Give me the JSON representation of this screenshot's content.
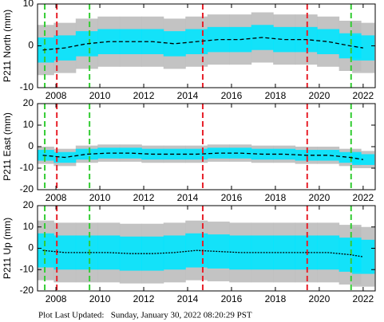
{
  "chart_data": [
    {
      "type": "line",
      "ylabel": "P211 North (mm)",
      "x": [
        2007.4,
        2008.4,
        2009.4,
        2010.4,
        2011.4,
        2012.4,
        2013.4,
        2014.4,
        2015.4,
        2016.4,
        2017.4,
        2018.4,
        2019.4,
        2020.4,
        2021.4,
        2022.0
      ],
      "xlim": [
        2007.16,
        2022.55
      ],
      "xticks": [
        2008,
        2010,
        2012,
        2014,
        2016,
        2018,
        2020,
        2022
      ],
      "ylim": [
        -10,
        10
      ],
      "yticks": [
        -10,
        0,
        10
      ],
      "bands": [
        {
          "color": "#bdbdbd",
          "low": [
            -7,
            -6.5,
            -5.5,
            -5,
            -5,
            -5,
            -5.5,
            -5,
            -4.5,
            -4.5,
            -4,
            -4.5,
            -4.5,
            -5,
            -6,
            -6.5
          ],
          "high": [
            5,
            5.5,
            6.5,
            7,
            7,
            7,
            6.5,
            7,
            7.5,
            7.5,
            8,
            7.5,
            7.5,
            7,
            6,
            5.5
          ]
        },
        {
          "color": "#00e5ff",
          "low": [
            -4,
            -3.5,
            -2.5,
            -2,
            -2,
            -2,
            -2.5,
            -2,
            -1.5,
            -1.5,
            -1,
            -1.5,
            -1.5,
            -2,
            -3,
            -3.5
          ],
          "high": [
            2,
            2.5,
            3.5,
            4,
            4,
            4,
            3.5,
            4,
            4.5,
            4.5,
            5,
            4.5,
            4.5,
            4,
            3,
            2.5
          ]
        }
      ],
      "series": [
        {
          "color": "#000000",
          "dashed": true,
          "values": [
            -1,
            -0.5,
            0.5,
            1,
            1,
            1,
            0.5,
            1,
            1.5,
            1.5,
            2,
            1.5,
            1.5,
            1,
            0,
            -0.5
          ]
        }
      ],
      "vlines": [
        {
          "x": 2007.49,
          "color": "#33cc33"
        },
        {
          "x": 2008.04,
          "color": "#e8202a"
        },
        {
          "x": 2009.53,
          "color": "#33cc33"
        },
        {
          "x": 2014.69,
          "color": "#e8202a"
        },
        {
          "x": 2019.45,
          "color": "#e8202a"
        },
        {
          "x": 2021.45,
          "color": "#33cc33"
        }
      ]
    },
    {
      "type": "line",
      "ylabel": "P211 East (mm)",
      "x": [
        2007.4,
        2008.4,
        2009.4,
        2010.4,
        2011.4,
        2012.4,
        2013.4,
        2014.4,
        2015.4,
        2016.4,
        2017.4,
        2018.4,
        2019.4,
        2020.4,
        2021.4,
        2022.0
      ],
      "xlim": [
        2007.16,
        2022.55
      ],
      "xticks": [
        2008,
        2010,
        2012,
        2014,
        2016,
        2018,
        2020,
        2022
      ],
      "ylim": [
        -20,
        20
      ],
      "yticks": [
        -20,
        -10,
        0,
        10,
        20
      ],
      "bands": [
        {
          "color": "#bdbdbd",
          "low": [
            -8,
            -9,
            -7.5,
            -7,
            -7,
            -7.5,
            -7.5,
            -7.5,
            -7,
            -7,
            -7.5,
            -7.5,
            -8,
            -8,
            -9,
            -10
          ],
          "high": [
            0,
            -1,
            0.5,
            1,
            1,
            0.5,
            0.5,
            0.5,
            1,
            1,
            0.5,
            0.5,
            0,
            0,
            -1,
            -2
          ]
        },
        {
          "color": "#00e5ff",
          "low": [
            -6.5,
            -7.5,
            -6,
            -5.5,
            -5.5,
            -6,
            -6,
            -6,
            -5.5,
            -5.5,
            -6,
            -6,
            -6.5,
            -6.5,
            -7.5,
            -8.5
          ],
          "high": [
            -1.5,
            -2.5,
            -1,
            -0.5,
            -0.5,
            -1,
            -1,
            -1,
            -0.5,
            -0.5,
            -1,
            -1,
            -1.5,
            -1.5,
            -2.5,
            -3.5
          ]
        }
      ],
      "series": [
        {
          "color": "#000000",
          "dashed": true,
          "values": [
            -4,
            -5,
            -3.5,
            -3,
            -3,
            -3.5,
            -3.5,
            -3.5,
            -3,
            -3,
            -3.5,
            -3.5,
            -4,
            -4,
            -5,
            -6
          ]
        }
      ],
      "vlines": [
        {
          "x": 2007.49,
          "color": "#33cc33"
        },
        {
          "x": 2008.04,
          "color": "#e8202a"
        },
        {
          "x": 2009.53,
          "color": "#33cc33"
        },
        {
          "x": 2014.69,
          "color": "#e8202a"
        },
        {
          "x": 2019.45,
          "color": "#e8202a"
        },
        {
          "x": 2021.45,
          "color": "#33cc33"
        }
      ]
    },
    {
      "type": "line",
      "ylabel": "P211 Up (mm)",
      "x": [
        2007.4,
        2008.4,
        2009.4,
        2010.4,
        2011.4,
        2012.4,
        2013.4,
        2014.4,
        2015.4,
        2016.4,
        2017.4,
        2018.4,
        2019.4,
        2020.4,
        2021.4,
        2022.0
      ],
      "xlim": [
        2007.16,
        2022.55
      ],
      "xticks": [
        2008,
        2010,
        2012,
        2014,
        2016,
        2018,
        2020,
        2022
      ],
      "ylim": [
        -20,
        20
      ],
      "yticks": [
        -20,
        -10,
        0,
        10,
        20
      ],
      "bands": [
        {
          "color": "#bdbdbd",
          "low": [
            -15,
            -16,
            -16,
            -16,
            -16.5,
            -16.5,
            -16,
            -15,
            -15.5,
            -16,
            -16,
            -16,
            -16,
            -16,
            -17,
            -18
          ],
          "high": [
            13,
            12,
            12,
            12,
            11.5,
            11.5,
            12,
            13,
            12.5,
            12,
            12,
            12,
            12,
            12,
            11,
            10
          ]
        },
        {
          "color": "#00e5ff",
          "low": [
            -9,
            -10,
            -10,
            -10,
            -10.5,
            -10.5,
            -10,
            -9,
            -9.5,
            -10,
            -10,
            -10,
            -10,
            -10,
            -11,
            -12
          ],
          "high": [
            7,
            6,
            6,
            6,
            5.5,
            5.5,
            6,
            7,
            6.5,
            6,
            6,
            6,
            6,
            6,
            5,
            4
          ]
        }
      ],
      "series": [
        {
          "color": "#000000",
          "dashed": false,
          "values": [
            -1,
            -2,
            -2,
            -2,
            -2.5,
            -2.5,
            -2,
            -1,
            -1.5,
            -2,
            -2,
            -2,
            -2,
            -2,
            -3,
            -4
          ]
        }
      ],
      "vlines": [
        {
          "x": 2007.49,
          "color": "#33cc33"
        },
        {
          "x": 2008.04,
          "color": "#e8202a"
        },
        {
          "x": 2009.53,
          "color": "#33cc33"
        },
        {
          "x": 2014.69,
          "color": "#e8202a"
        },
        {
          "x": 2019.45,
          "color": "#e8202a"
        },
        {
          "x": 2021.45,
          "color": "#33cc33"
        }
      ]
    }
  ],
  "footer": "Plot Last Updated:   Sunday, January 30, 2022 08:20:29 PST"
}
